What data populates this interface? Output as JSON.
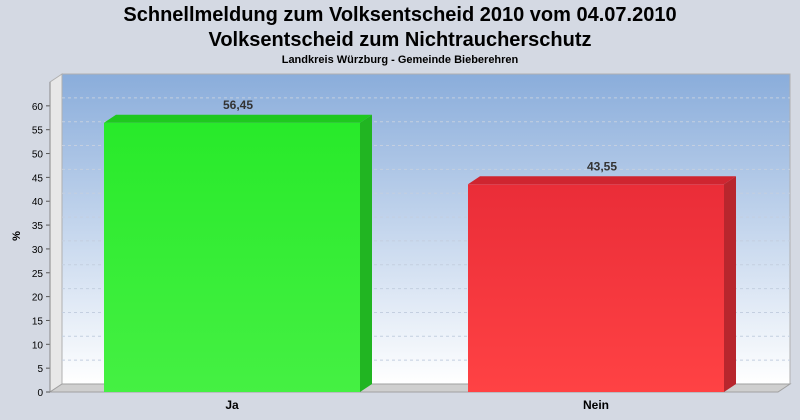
{
  "title": "Schnellmeldung zum Volksentscheid 2010 vom 04.07.2010",
  "subtitle_main": "Volksentscheid zum Nichtraucherschutz",
  "subtitle_small": "Landkreis Würzburg - Gemeinde Bieberehren",
  "colors": {
    "ja": "#2de52d",
    "nein": "#ef2d35",
    "plot_top": "#8aaddb",
    "plot_bottom": "#ffffff"
  },
  "chart_data": {
    "type": "bar",
    "categories": [
      "Ja",
      "Nein"
    ],
    "values": [
      56.45,
      43.55
    ],
    "value_labels": [
      "56,45",
      "43,55"
    ],
    "ylabel": "%",
    "ylim": [
      0,
      65
    ],
    "yticks": [
      0,
      5,
      10,
      15,
      20,
      25,
      30,
      35,
      40,
      45,
      50,
      55,
      60
    ],
    "grid": true
  }
}
